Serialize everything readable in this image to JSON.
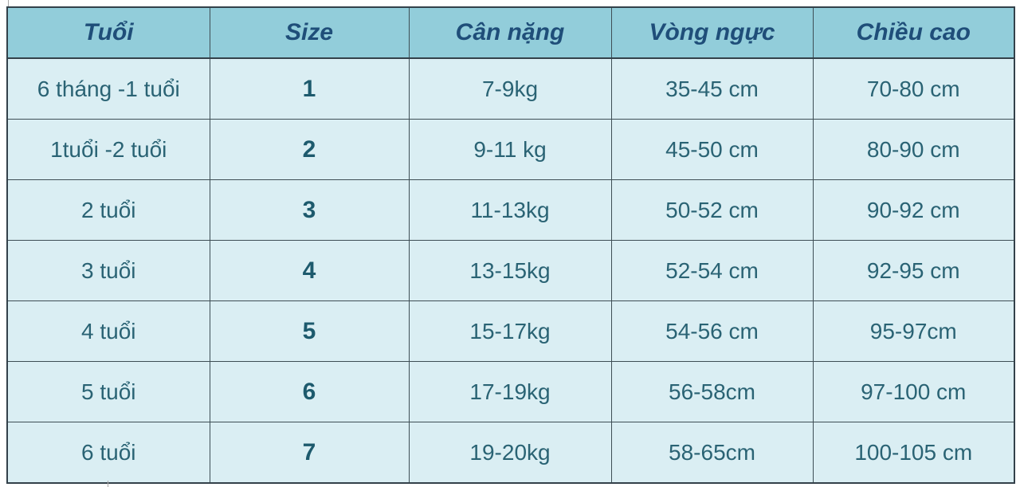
{
  "chart_data": {
    "type": "table",
    "title": "",
    "columns": [
      {
        "key": "tuoi",
        "label": "Tuổi"
      },
      {
        "key": "size",
        "label": "Size"
      },
      {
        "key": "can-nang",
        "label": "Cân nặng"
      },
      {
        "key": "vong-nguc",
        "label": "Vòng ngực"
      },
      {
        "key": "chieu-cao",
        "label": "Chiều cao"
      }
    ],
    "rows": [
      [
        "6 tháng -1 tuổi",
        "1",
        "7-9kg",
        "35-45 cm",
        "70-80 cm"
      ],
      [
        "1tuổi -2 tuổi",
        "2",
        "9-11 kg",
        "45-50 cm",
        "80-90 cm"
      ],
      [
        "2 tuổi",
        "3",
        "11-13kg",
        "50-52 cm",
        "90-92 cm"
      ],
      [
        "3 tuổi",
        "4",
        "13-15kg",
        "52-54 cm",
        "92-95 cm"
      ],
      [
        "4 tuổi",
        "5",
        "15-17kg",
        "54-56 cm",
        "95-97cm"
      ],
      [
        "5 tuổi",
        "6",
        "17-19kg",
        "56-58cm",
        "97-100 cm"
      ],
      [
        "6 tuổi",
        "7",
        "19-20kg",
        "58-65cm",
        "100-105 cm"
      ]
    ]
  },
  "colors": {
    "header-bg": "#92cdda",
    "header-text": "#1f4e79",
    "body-bg": "#daeef3",
    "body-text": "#2a6374",
    "size-text": "#1d5a6d",
    "border-inner": "#3e4e55",
    "border-outer": "#33414a"
  }
}
